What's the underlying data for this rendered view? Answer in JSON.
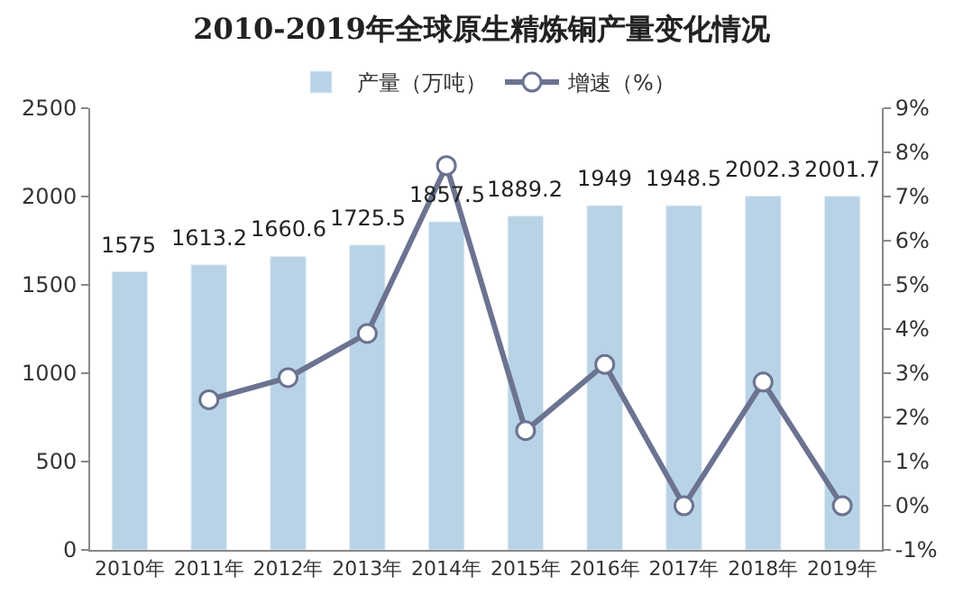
{
  "chart_data": {
    "type": "bar",
    "title": "2010-2019年全球原生精炼铜产量变化情况",
    "categories": [
      "2010年",
      "2011年",
      "2012年",
      "2013年",
      "2014年",
      "2015年",
      "2016年",
      "2017年",
      "2018年",
      "2019年"
    ],
    "series": [
      {
        "name": "产量（万吨）",
        "color": "#b8d3e6",
        "values": [
          1575,
          1613.2,
          1660.6,
          1725.5,
          1857.5,
          1889.2,
          1949,
          1948.5,
          2002.3,
          2001.7
        ],
        "data_labels": true
      },
      {
        "name": "增速（%）",
        "type": "line",
        "axis": "y2",
        "color": "#6b7391",
        "marker": "circle",
        "line_style": "solid",
        "values": [
          null,
          2.4,
          2.9,
          3.9,
          7.7,
          1.7,
          3.2,
          0.0,
          2.8,
          0.0
        ]
      }
    ],
    "ylim": [
      0,
      2500
    ],
    "yticks": [
      0,
      500,
      1000,
      1500,
      2000,
      2500
    ],
    "y2lim": [
      -1,
      9
    ],
    "y2ticks": [
      {
        "value": -1,
        "label": "-1%"
      },
      {
        "value": 0,
        "label": "0%"
      },
      {
        "value": 1,
        "label": "1%"
      },
      {
        "value": 2,
        "label": "2%"
      },
      {
        "value": 3,
        "label": "3%"
      },
      {
        "value": 4,
        "label": "4%"
      },
      {
        "value": 5,
        "label": "5%"
      },
      {
        "value": 6,
        "label": "6%"
      },
      {
        "value": 7,
        "label": "7%"
      },
      {
        "value": 8,
        "label": "8%"
      },
      {
        "value": 9,
        "label": "9%"
      }
    ],
    "grid": false,
    "legend": "top"
  }
}
